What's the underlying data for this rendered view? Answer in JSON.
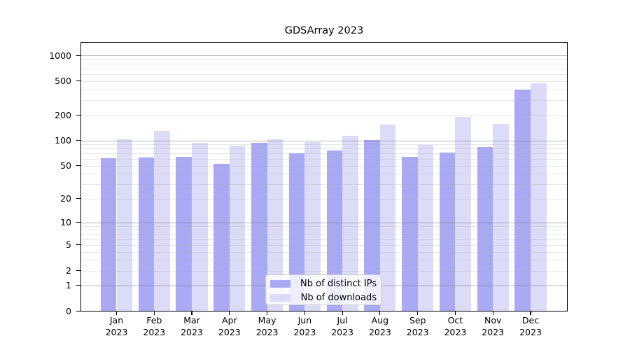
{
  "chart_data": {
    "type": "bar",
    "title": "GDSArray 2023",
    "categories": [
      "Jan",
      "Feb",
      "Mar",
      "Apr",
      "May",
      "Jun",
      "Jul",
      "Aug",
      "Sep",
      "Oct",
      "Nov",
      "Dec"
    ],
    "x_tick_second_line": "2023",
    "series": [
      {
        "name": "Nb of distinct IPs",
        "color": "#a9a9f4",
        "values": [
          61,
          63,
          64,
          53,
          93,
          70,
          76,
          101,
          64,
          72,
          84,
          395
        ]
      },
      {
        "name": "Nb of downloads",
        "color": "#dcdcf9",
        "values": [
          103,
          130,
          94,
          86,
          102,
          96,
          113,
          153,
          88,
          190,
          157,
          475
        ]
      }
    ],
    "yscale": "log1p",
    "y_ticks": [
      0,
      1,
      2,
      5,
      10,
      20,
      50,
      100,
      200,
      500,
      1000
    ],
    "ylim": [
      0,
      1440
    ],
    "grid": "horizontal, major and minor, drawn over bars",
    "legend_position": "lower center",
    "colors": {
      "background": "#ffffff",
      "axis": "#000000",
      "major_grid": "#6e6e6e",
      "minor_grid": "#c9c9c9"
    }
  }
}
